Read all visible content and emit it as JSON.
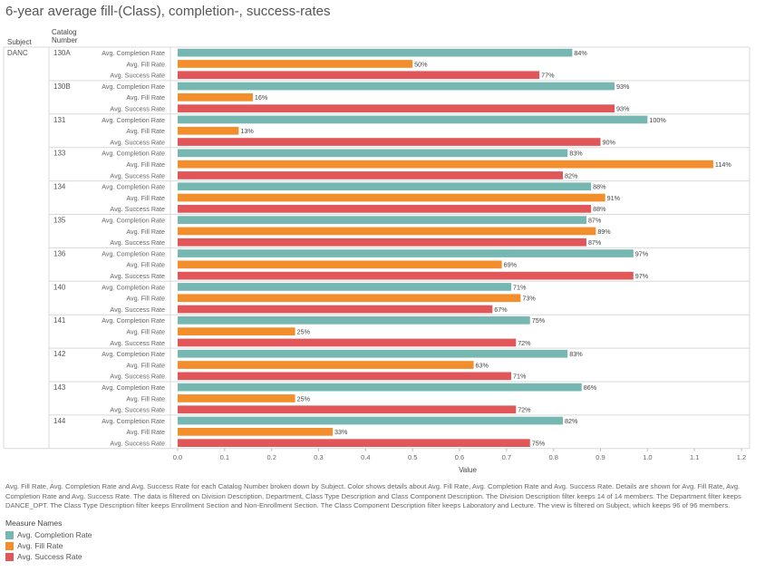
{
  "title": "6-year average fill-(Class), completion-, success-rates",
  "headers": {
    "subject": "Subject",
    "catalog_line1": "Catalog",
    "catalog_line2": "Number"
  },
  "subject": "DANC",
  "colors": {
    "completion": "#76b7b2",
    "fill": "#f28e2b",
    "success": "#e15759"
  },
  "chart_data": {
    "type": "bar",
    "orientation": "horizontal",
    "xlabel": "Value",
    "xlim": [
      0,
      1.2
    ],
    "xticks": [
      "0.0",
      "0.1",
      "0.2",
      "0.3",
      "0.4",
      "0.5",
      "0.6",
      "0.7",
      "0.8",
      "0.9",
      "1.0",
      "1.1",
      "1.2"
    ],
    "measures": [
      "Avg. Completion Rate",
      "Avg. Fill Rate",
      "Avg. Success Rate"
    ],
    "groups": [
      {
        "catalog": "130A",
        "values": [
          0.84,
          0.5,
          0.77
        ],
        "labels": [
          "84%",
          "50%",
          "77%"
        ]
      },
      {
        "catalog": "130B",
        "values": [
          0.93,
          0.16,
          0.93
        ],
        "labels": [
          "93%",
          "16%",
          "93%"
        ]
      },
      {
        "catalog": "131",
        "values": [
          1.0,
          0.13,
          0.9
        ],
        "labels": [
          "100%",
          "13%",
          "90%"
        ]
      },
      {
        "catalog": "133",
        "values": [
          0.83,
          1.14,
          0.82
        ],
        "labels": [
          "83%",
          "114%",
          "82%"
        ]
      },
      {
        "catalog": "134",
        "values": [
          0.88,
          0.91,
          0.88
        ],
        "labels": [
          "88%",
          "91%",
          "88%"
        ]
      },
      {
        "catalog": "135",
        "values": [
          0.87,
          0.89,
          0.87
        ],
        "labels": [
          "87%",
          "89%",
          "87%"
        ]
      },
      {
        "catalog": "136",
        "values": [
          0.97,
          0.69,
          0.97
        ],
        "labels": [
          "97%",
          "69%",
          "97%"
        ]
      },
      {
        "catalog": "140",
        "values": [
          0.71,
          0.73,
          0.67
        ],
        "labels": [
          "71%",
          "73%",
          "67%"
        ]
      },
      {
        "catalog": "141",
        "values": [
          0.75,
          0.25,
          0.72
        ],
        "labels": [
          "75%",
          "25%",
          "72%"
        ]
      },
      {
        "catalog": "142",
        "values": [
          0.83,
          0.63,
          0.71
        ],
        "labels": [
          "83%",
          "63%",
          "71%"
        ]
      },
      {
        "catalog": "143",
        "values": [
          0.86,
          0.25,
          0.72
        ],
        "labels": [
          "86%",
          "25%",
          "72%"
        ]
      },
      {
        "catalog": "144",
        "values": [
          0.82,
          0.33,
          0.75
        ],
        "labels": [
          "82%",
          "33%",
          "75%"
        ]
      }
    ]
  },
  "caption": "Avg. Fill Rate, Avg. Completion Rate and Avg. Success Rate for each Catalog Number broken down by Subject.  Color shows details about Avg. Fill Rate, Avg. Completion Rate and Avg. Success Rate.  Details are shown for Avg. Fill Rate, Avg. Completion Rate and Avg. Success Rate. The data is filtered on Division Description, Department, Class Type Description and Class Component Description. The Division Description filter keeps 14 of 14 members. The Department filter keeps DANCE_DPT. The Class Type Description filter keeps Enrollment Section and Non-Enrollment Section. The Class Component Description filter keeps Laboratory and Lecture. The view is filtered on Subject, which keeps 96 of 96 members.",
  "legend": {
    "title": "Measure Names",
    "items": [
      "Avg. Completion Rate",
      "Avg. Fill Rate",
      "Avg. Success Rate"
    ]
  }
}
